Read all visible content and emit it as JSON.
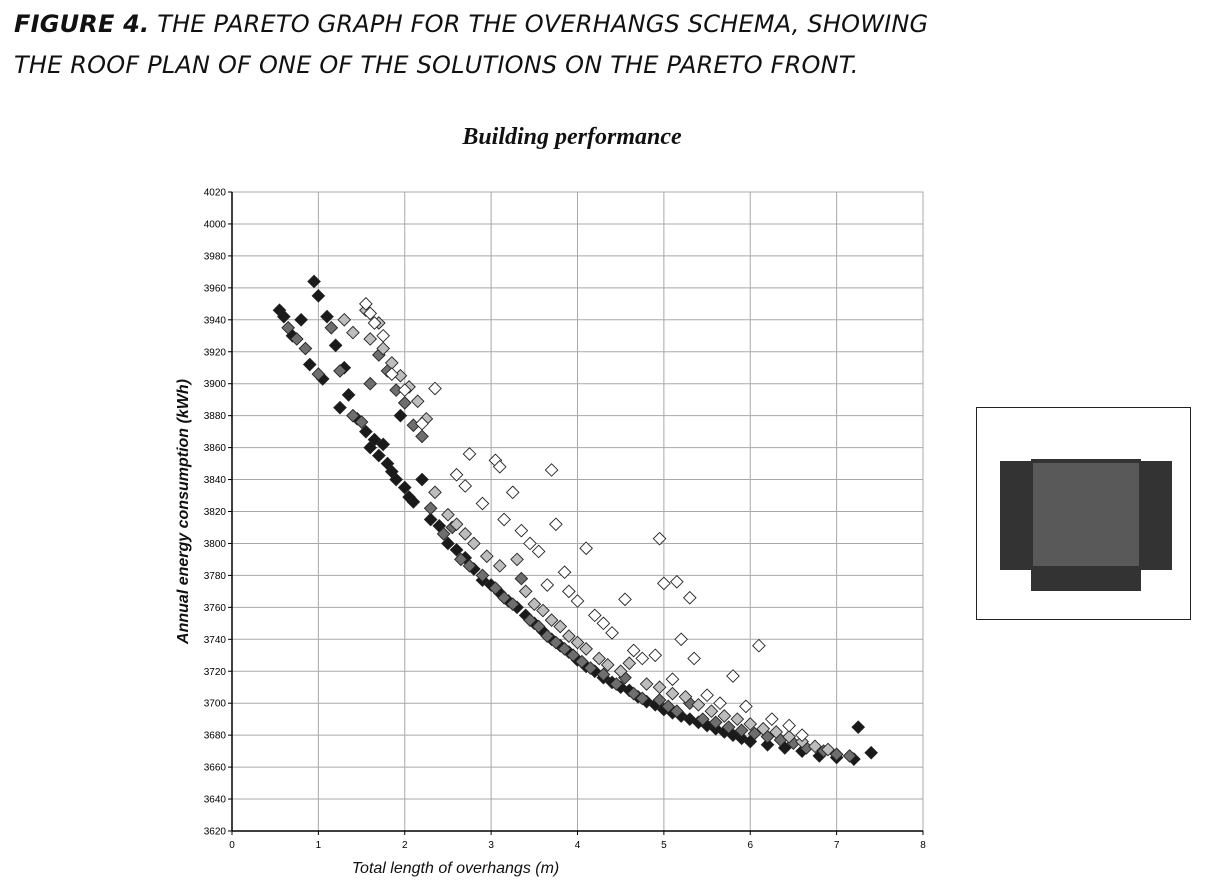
{
  "figure": {
    "label": "FIGURE 4.",
    "caption_line1": "THE PARETO GRAPH FOR THE OVERHANGS SCHEMA, SHOWING",
    "caption_line2": "THE ROOF PLAN OF ONE OF THE SOLUTIONS ON THE PARETO FRONT."
  },
  "colors": {
    "roof_main": "#595959",
    "roof_overhang": "#333333",
    "marker_fill_dark": "#1a1a1a",
    "marker_fill_mid": "#6e6e6e",
    "marker_fill_light": "#bdbdbd",
    "marker_fill_white": "#ffffff"
  },
  "chart_data": {
    "type": "scatter",
    "title": "Building performance",
    "xlabel": "Total length of overhangs (m)",
    "ylabel": "Annual energy consumption (kWh)",
    "xlim": [
      0,
      8
    ],
    "ylim": [
      3620,
      4020
    ],
    "xticks": [
      0,
      1,
      2,
      3,
      4,
      5,
      6,
      7,
      8
    ],
    "yticks": [
      3620,
      3640,
      3660,
      3680,
      3700,
      3720,
      3740,
      3760,
      3780,
      3800,
      3820,
      3840,
      3860,
      3880,
      3900,
      3920,
      3940,
      3960,
      3980,
      4000,
      4020
    ],
    "grid": true,
    "marker": "diamond",
    "series": [
      {
        "shade": "dark",
        "points": [
          [
            0.55,
            3946
          ],
          [
            0.6,
            3942
          ],
          [
            0.7,
            3930
          ],
          [
            0.8,
            3940
          ],
          [
            0.9,
            3912
          ],
          [
            0.95,
            3964
          ],
          [
            1.0,
            3955
          ],
          [
            1.05,
            3903
          ],
          [
            1.1,
            3942
          ],
          [
            1.2,
            3924
          ],
          [
            1.25,
            3885
          ],
          [
            1.3,
            3910
          ],
          [
            1.35,
            3893
          ],
          [
            1.45,
            3878
          ],
          [
            1.55,
            3870
          ],
          [
            1.6,
            3860
          ],
          [
            1.65,
            3865
          ],
          [
            1.7,
            3855
          ],
          [
            1.75,
            3862
          ],
          [
            1.8,
            3850
          ],
          [
            1.85,
            3845
          ],
          [
            1.9,
            3840
          ],
          [
            1.95,
            3880
          ],
          [
            2.0,
            3835
          ],
          [
            2.05,
            3829
          ],
          [
            2.1,
            3826
          ],
          [
            2.2,
            3840
          ],
          [
            2.3,
            3815
          ],
          [
            2.4,
            3811
          ],
          [
            2.5,
            3800
          ],
          [
            2.6,
            3796
          ],
          [
            2.7,
            3791
          ],
          [
            2.8,
            3784
          ],
          [
            2.9,
            3777
          ],
          [
            3.0,
            3774
          ],
          [
            3.1,
            3769
          ],
          [
            3.2,
            3764
          ],
          [
            3.3,
            3760
          ],
          [
            3.4,
            3755
          ],
          [
            3.5,
            3750
          ],
          [
            3.6,
            3745
          ],
          [
            3.7,
            3740
          ],
          [
            3.8,
            3736
          ],
          [
            3.9,
            3732
          ],
          [
            4.0,
            3727
          ],
          [
            4.1,
            3723
          ],
          [
            4.2,
            3720
          ],
          [
            4.3,
            3716
          ],
          [
            4.4,
            3713
          ],
          [
            4.5,
            3710
          ],
          [
            4.6,
            3708
          ],
          [
            4.7,
            3704
          ],
          [
            4.8,
            3701
          ],
          [
            4.9,
            3699
          ],
          [
            5.0,
            3696
          ],
          [
            5.1,
            3694
          ],
          [
            5.2,
            3692
          ],
          [
            5.3,
            3690
          ],
          [
            5.4,
            3688
          ],
          [
            5.5,
            3686
          ],
          [
            5.6,
            3684
          ],
          [
            5.7,
            3682
          ],
          [
            5.8,
            3680
          ],
          [
            5.9,
            3678
          ],
          [
            6.0,
            3676
          ],
          [
            6.2,
            3674
          ],
          [
            6.4,
            3672
          ],
          [
            6.6,
            3670
          ],
          [
            6.8,
            3667
          ],
          [
            7.0,
            3666
          ],
          [
            7.2,
            3665
          ],
          [
            7.4,
            3669
          ],
          [
            7.25,
            3685
          ]
        ]
      },
      {
        "shade": "mid",
        "points": [
          [
            0.65,
            3935
          ],
          [
            0.75,
            3928
          ],
          [
            0.85,
            3922
          ],
          [
            1.0,
            3906
          ],
          [
            1.15,
            3935
          ],
          [
            1.25,
            3908
          ],
          [
            1.4,
            3880
          ],
          [
            1.5,
            3876
          ],
          [
            1.6,
            3900
          ],
          [
            1.7,
            3918
          ],
          [
            1.8,
            3908
          ],
          [
            1.9,
            3896
          ],
          [
            2.0,
            3888
          ],
          [
            2.1,
            3874
          ],
          [
            2.2,
            3867
          ],
          [
            2.3,
            3822
          ],
          [
            2.45,
            3806
          ],
          [
            2.55,
            3810
          ],
          [
            2.65,
            3790
          ],
          [
            2.75,
            3786
          ],
          [
            2.9,
            3780
          ],
          [
            3.05,
            3772
          ],
          [
            3.15,
            3766
          ],
          [
            3.25,
            3762
          ],
          [
            3.35,
            3778
          ],
          [
            3.45,
            3752
          ],
          [
            3.55,
            3748
          ],
          [
            3.65,
            3742
          ],
          [
            3.75,
            3738
          ],
          [
            3.85,
            3734
          ],
          [
            3.95,
            3730
          ],
          [
            4.05,
            3726
          ],
          [
            4.15,
            3722
          ],
          [
            4.3,
            3718
          ],
          [
            4.45,
            3712
          ],
          [
            4.55,
            3716
          ],
          [
            4.65,
            3706
          ],
          [
            4.75,
            3703
          ],
          [
            4.95,
            3702
          ],
          [
            5.05,
            3698
          ],
          [
            5.15,
            3695
          ],
          [
            5.3,
            3700
          ],
          [
            5.45,
            3690
          ],
          [
            5.6,
            3688
          ],
          [
            5.75,
            3685
          ],
          [
            5.9,
            3683
          ],
          [
            6.05,
            3681
          ],
          [
            6.2,
            3679
          ],
          [
            6.35,
            3677
          ],
          [
            6.5,
            3675
          ],
          [
            6.65,
            3672
          ],
          [
            6.85,
            3670
          ],
          [
            7.0,
            3668
          ],
          [
            7.15,
            3667
          ]
        ]
      },
      {
        "shade": "light",
        "points": [
          [
            1.3,
            3940
          ],
          [
            1.4,
            3932
          ],
          [
            1.55,
            3946
          ],
          [
            1.6,
            3928
          ],
          [
            1.7,
            3938
          ],
          [
            1.75,
            3922
          ],
          [
            1.85,
            3913
          ],
          [
            1.95,
            3905
          ],
          [
            2.05,
            3898
          ],
          [
            2.15,
            3889
          ],
          [
            2.25,
            3878
          ],
          [
            2.35,
            3832
          ],
          [
            2.5,
            3818
          ],
          [
            2.6,
            3812
          ],
          [
            2.7,
            3806
          ],
          [
            2.8,
            3800
          ],
          [
            2.95,
            3792
          ],
          [
            3.1,
            3786
          ],
          [
            3.3,
            3790
          ],
          [
            3.4,
            3770
          ],
          [
            3.5,
            3762
          ],
          [
            3.6,
            3758
          ],
          [
            3.7,
            3752
          ],
          [
            3.8,
            3748
          ],
          [
            3.9,
            3742
          ],
          [
            4.0,
            3738
          ],
          [
            4.1,
            3734
          ],
          [
            4.25,
            3728
          ],
          [
            4.35,
            3724
          ],
          [
            4.5,
            3720
          ],
          [
            4.6,
            3725
          ],
          [
            4.8,
            3712
          ],
          [
            4.95,
            3710
          ],
          [
            5.1,
            3706
          ],
          [
            5.25,
            3704
          ],
          [
            5.4,
            3699
          ],
          [
            5.55,
            3695
          ],
          [
            5.7,
            3692
          ],
          [
            5.85,
            3690
          ],
          [
            6.0,
            3687
          ],
          [
            6.15,
            3684
          ],
          [
            6.3,
            3682
          ],
          [
            6.45,
            3679
          ],
          [
            6.6,
            3676
          ],
          [
            6.75,
            3673
          ],
          [
            6.9,
            3671
          ]
        ]
      },
      {
        "shade": "white",
        "points": [
          [
            1.55,
            3950
          ],
          [
            1.6,
            3944
          ],
          [
            1.65,
            3938
          ],
          [
            1.75,
            3930
          ],
          [
            1.85,
            3906
          ],
          [
            2.0,
            3896
          ],
          [
            2.2,
            3875
          ],
          [
            2.35,
            3897
          ],
          [
            2.6,
            3843
          ],
          [
            2.7,
            3836
          ],
          [
            2.75,
            3856
          ],
          [
            2.9,
            3825
          ],
          [
            3.05,
            3852
          ],
          [
            3.1,
            3848
          ],
          [
            3.15,
            3815
          ],
          [
            3.25,
            3832
          ],
          [
            3.35,
            3808
          ],
          [
            3.45,
            3800
          ],
          [
            3.55,
            3795
          ],
          [
            3.65,
            3774
          ],
          [
            3.7,
            3846
          ],
          [
            3.75,
            3812
          ],
          [
            3.85,
            3782
          ],
          [
            3.9,
            3770
          ],
          [
            4.0,
            3764
          ],
          [
            4.1,
            3797
          ],
          [
            4.2,
            3755
          ],
          [
            4.3,
            3750
          ],
          [
            4.4,
            3744
          ],
          [
            4.55,
            3765
          ],
          [
            4.65,
            3733
          ],
          [
            4.75,
            3728
          ],
          [
            4.9,
            3730
          ],
          [
            4.95,
            3803
          ],
          [
            5.0,
            3775
          ],
          [
            5.1,
            3715
          ],
          [
            5.15,
            3776
          ],
          [
            5.2,
            3740
          ],
          [
            5.3,
            3766
          ],
          [
            5.35,
            3728
          ],
          [
            5.5,
            3705
          ],
          [
            5.65,
            3700
          ],
          [
            5.8,
            3717
          ],
          [
            5.95,
            3698
          ],
          [
            6.1,
            3736
          ],
          [
            6.25,
            3690
          ],
          [
            6.45,
            3686
          ],
          [
            6.6,
            3680
          ]
        ]
      }
    ]
  }
}
